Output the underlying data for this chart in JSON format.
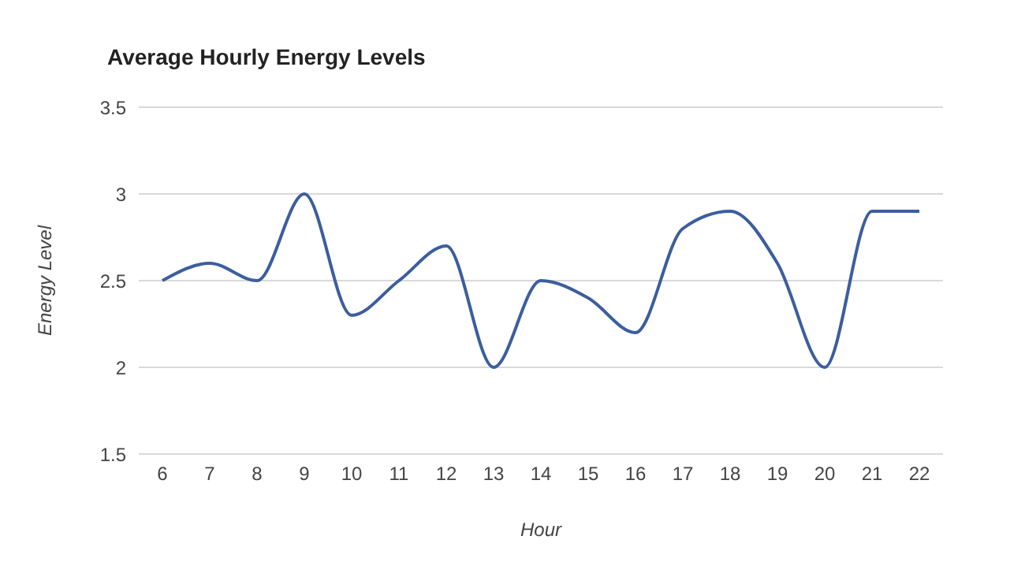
{
  "chart_data": {
    "type": "line",
    "title": "Average Hourly Energy Levels",
    "xlabel": "Hour",
    "ylabel": "Energy Level",
    "categories": [
      "6",
      "7",
      "8",
      "9",
      "10",
      "11",
      "12",
      "13",
      "14",
      "15",
      "16",
      "17",
      "18",
      "19",
      "20",
      "21",
      "22"
    ],
    "series": [
      {
        "color": "#3c5e9e",
        "values": [
          2.5,
          2.6,
          2.5,
          3.0,
          2.3,
          2.5,
          2.7,
          2.0,
          2.5,
          2.4,
          2.2,
          2.8,
          2.9,
          2.6,
          2.0,
          2.9,
          2.9
        ]
      }
    ],
    "ylim": [
      1.5,
      3.5
    ],
    "yticks": [
      1.5,
      2,
      2.5,
      3,
      3.5
    ],
    "grid": "y",
    "marker": "none"
  }
}
